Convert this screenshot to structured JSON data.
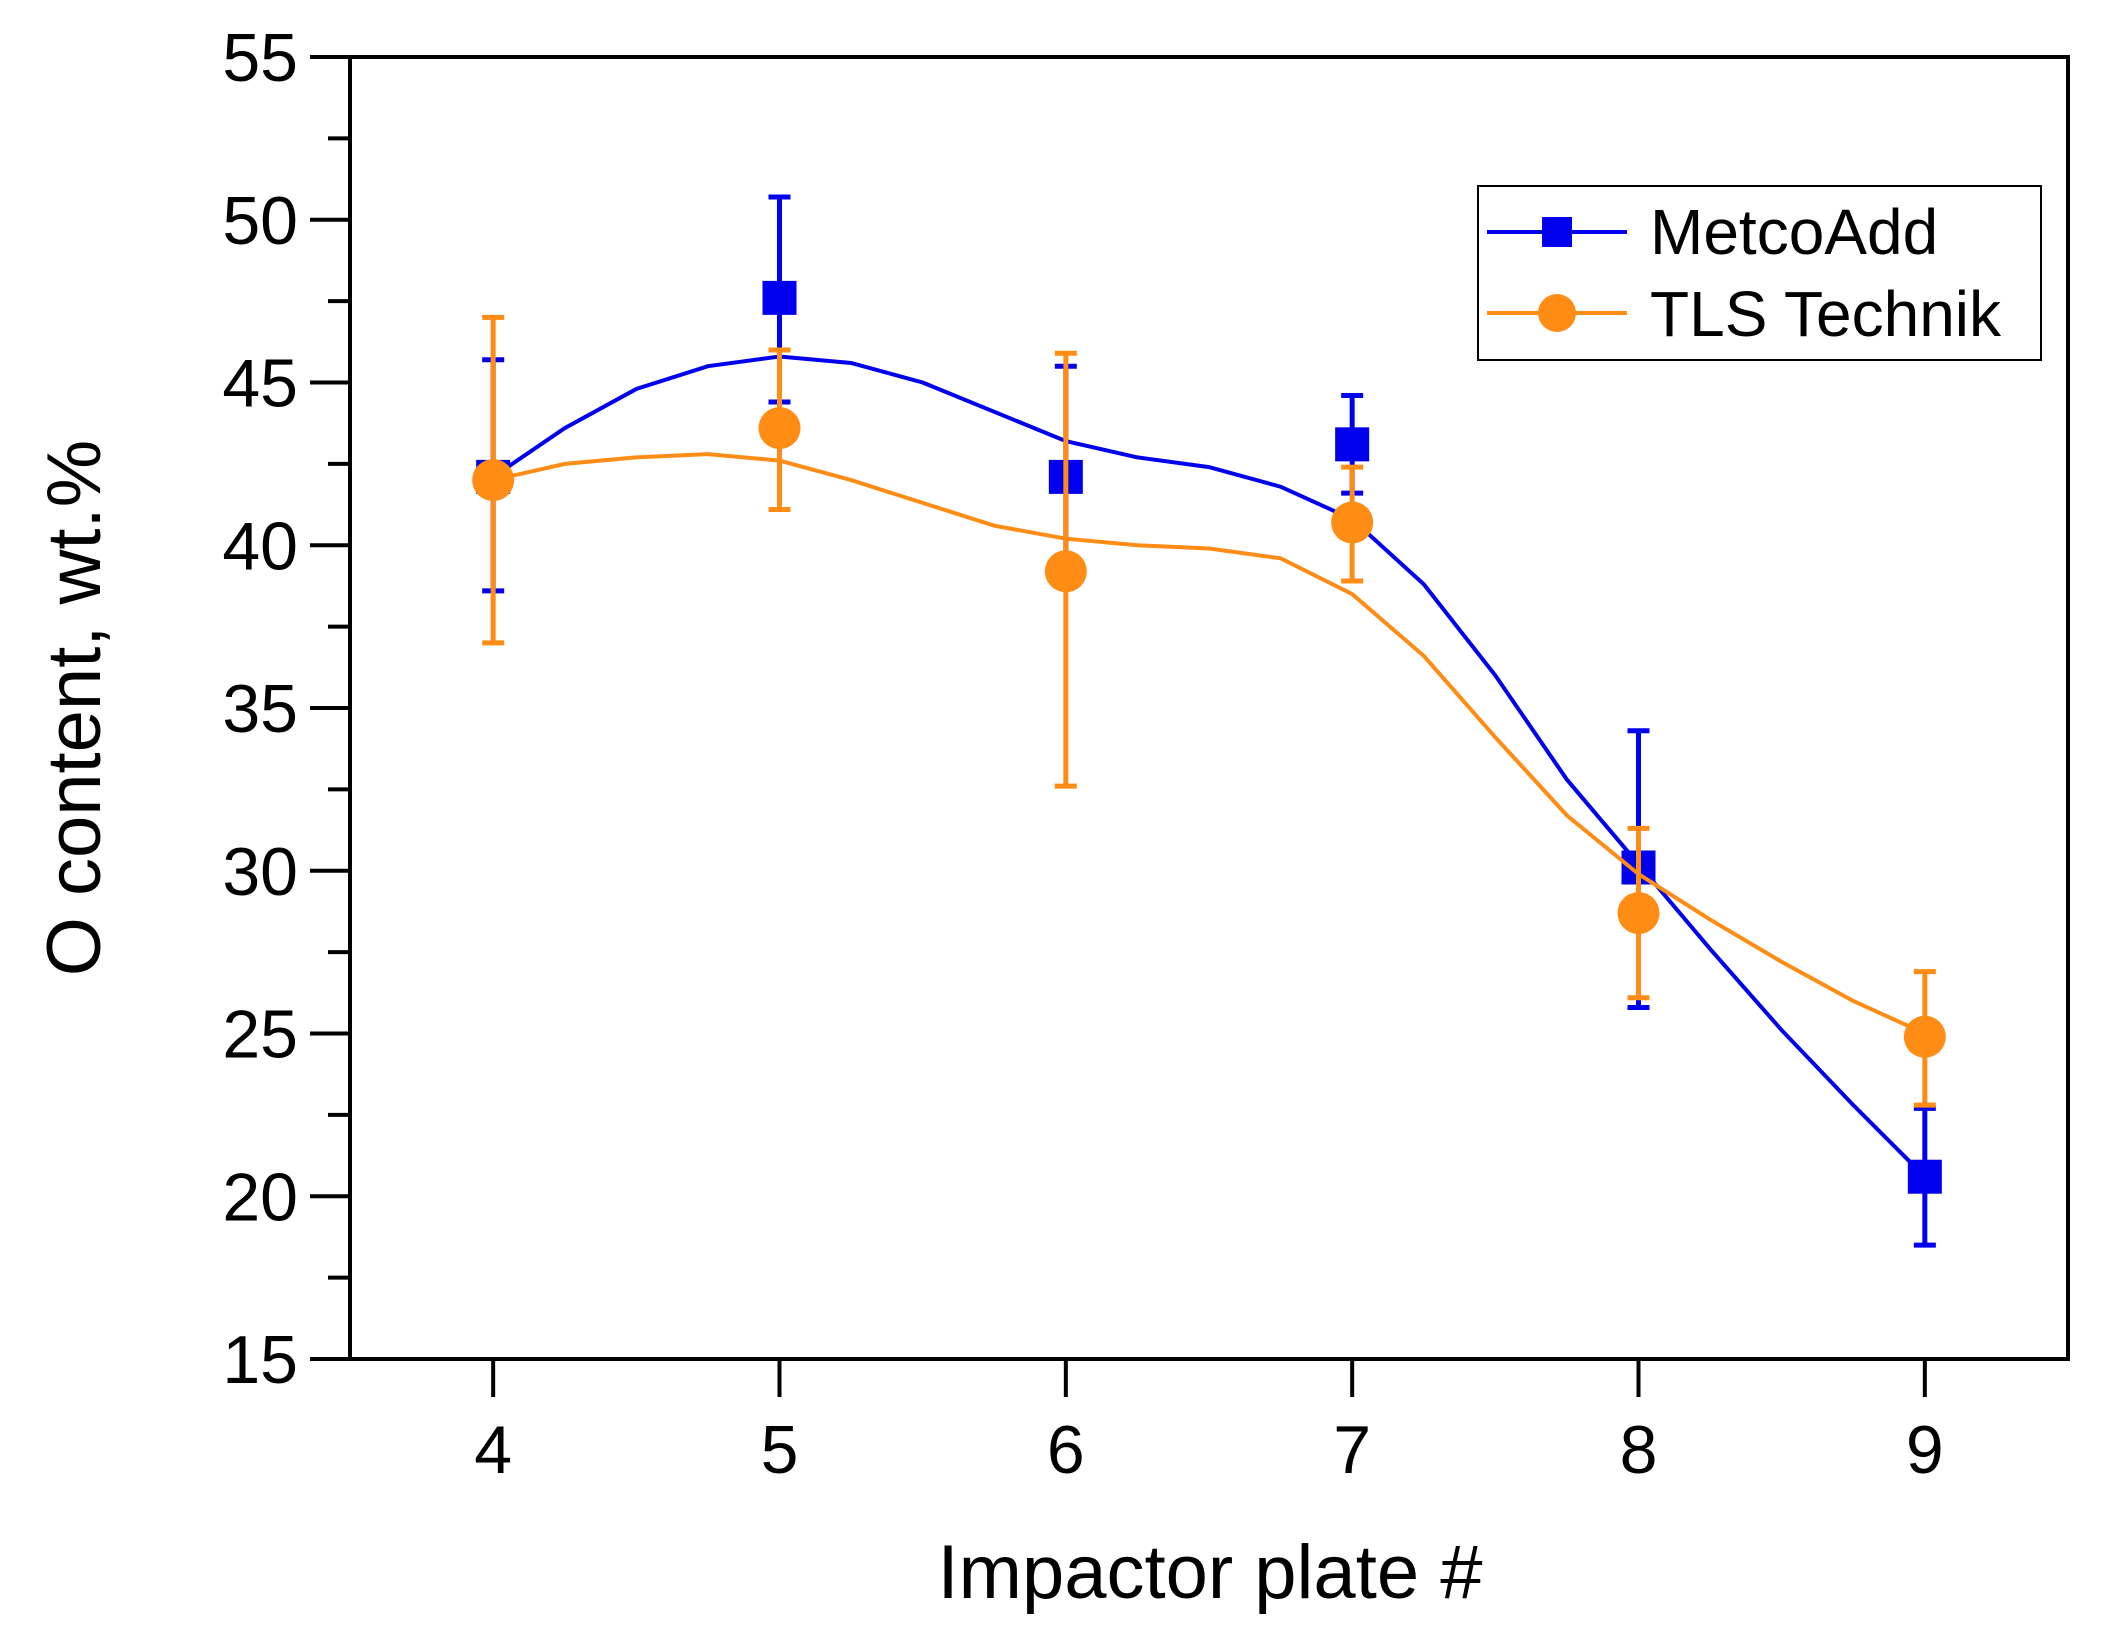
{
  "chart_data": {
    "type": "scatter",
    "title": "",
    "xlabel": "Impactor plate #",
    "ylabel": "O content, wt.%",
    "xlim": [
      3.5,
      9.5
    ],
    "ylim": [
      15,
      55
    ],
    "x_ticks": [
      4,
      5,
      6,
      7,
      8,
      9
    ],
    "y_ticks": [
      15,
      20,
      25,
      30,
      35,
      40,
      45,
      50,
      55
    ],
    "y_minor_ticks": [
      17.5,
      22.5,
      27.5,
      32.5,
      37.5,
      42.5,
      47.5,
      52.5
    ],
    "grid": false,
    "legend_position": "top-right",
    "series": [
      {
        "name": "MetcoAdd",
        "color": "#0000ee",
        "marker": "square",
        "x": [
          4,
          5,
          6,
          7,
          8,
          9
        ],
        "y": [
          42.1,
          47.6,
          42.1,
          43.1,
          30.1,
          20.6
        ],
        "err_lo": [
          38.6,
          44.4,
          38.8,
          41.6,
          25.8,
          18.5
        ],
        "err_hi": [
          45.7,
          50.7,
          45.5,
          44.6,
          34.3,
          22.7
        ],
        "curve": [
          [
            4.0,
            42.1
          ],
          [
            4.25,
            43.6
          ],
          [
            4.5,
            44.8
          ],
          [
            4.75,
            45.5
          ],
          [
            5.0,
            45.8
          ],
          [
            5.25,
            45.6
          ],
          [
            5.5,
            45.0
          ],
          [
            5.75,
            44.1
          ],
          [
            6.0,
            43.2
          ],
          [
            6.25,
            42.7
          ],
          [
            6.5,
            42.4
          ],
          [
            6.75,
            41.8
          ],
          [
            7.0,
            40.8
          ],
          [
            7.25,
            38.8
          ],
          [
            7.5,
            36.0
          ],
          [
            7.75,
            32.8
          ],
          [
            8.0,
            30.2
          ],
          [
            8.25,
            27.6
          ],
          [
            8.5,
            25.1
          ],
          [
            8.75,
            22.8
          ],
          [
            9.0,
            20.6
          ]
        ]
      },
      {
        "name": "TLS Technik",
        "color": "#ff8c14",
        "marker": "circle",
        "x": [
          4,
          5,
          6,
          7,
          8,
          9
        ],
        "y": [
          42.0,
          43.6,
          39.2,
          40.7,
          28.7,
          24.9
        ],
        "err_lo": [
          37.0,
          41.1,
          32.6,
          38.9,
          26.1,
          22.8
        ],
        "err_hi": [
          47.0,
          46.0,
          45.9,
          42.4,
          31.3,
          26.9
        ],
        "curve": [
          [
            4.0,
            42.0
          ],
          [
            4.25,
            42.5
          ],
          [
            4.5,
            42.7
          ],
          [
            4.75,
            42.8
          ],
          [
            5.0,
            42.6
          ],
          [
            5.25,
            42.0
          ],
          [
            5.5,
            41.3
          ],
          [
            5.75,
            40.6
          ],
          [
            6.0,
            40.2
          ],
          [
            6.25,
            40.0
          ],
          [
            6.5,
            39.9
          ],
          [
            6.75,
            39.6
          ],
          [
            7.0,
            38.5
          ],
          [
            7.25,
            36.6
          ],
          [
            7.5,
            34.1
          ],
          [
            7.75,
            31.7
          ],
          [
            8.0,
            29.9
          ],
          [
            8.25,
            28.5
          ],
          [
            8.5,
            27.2
          ],
          [
            8.75,
            26.0
          ],
          [
            9.0,
            25.0
          ]
        ]
      }
    ]
  }
}
